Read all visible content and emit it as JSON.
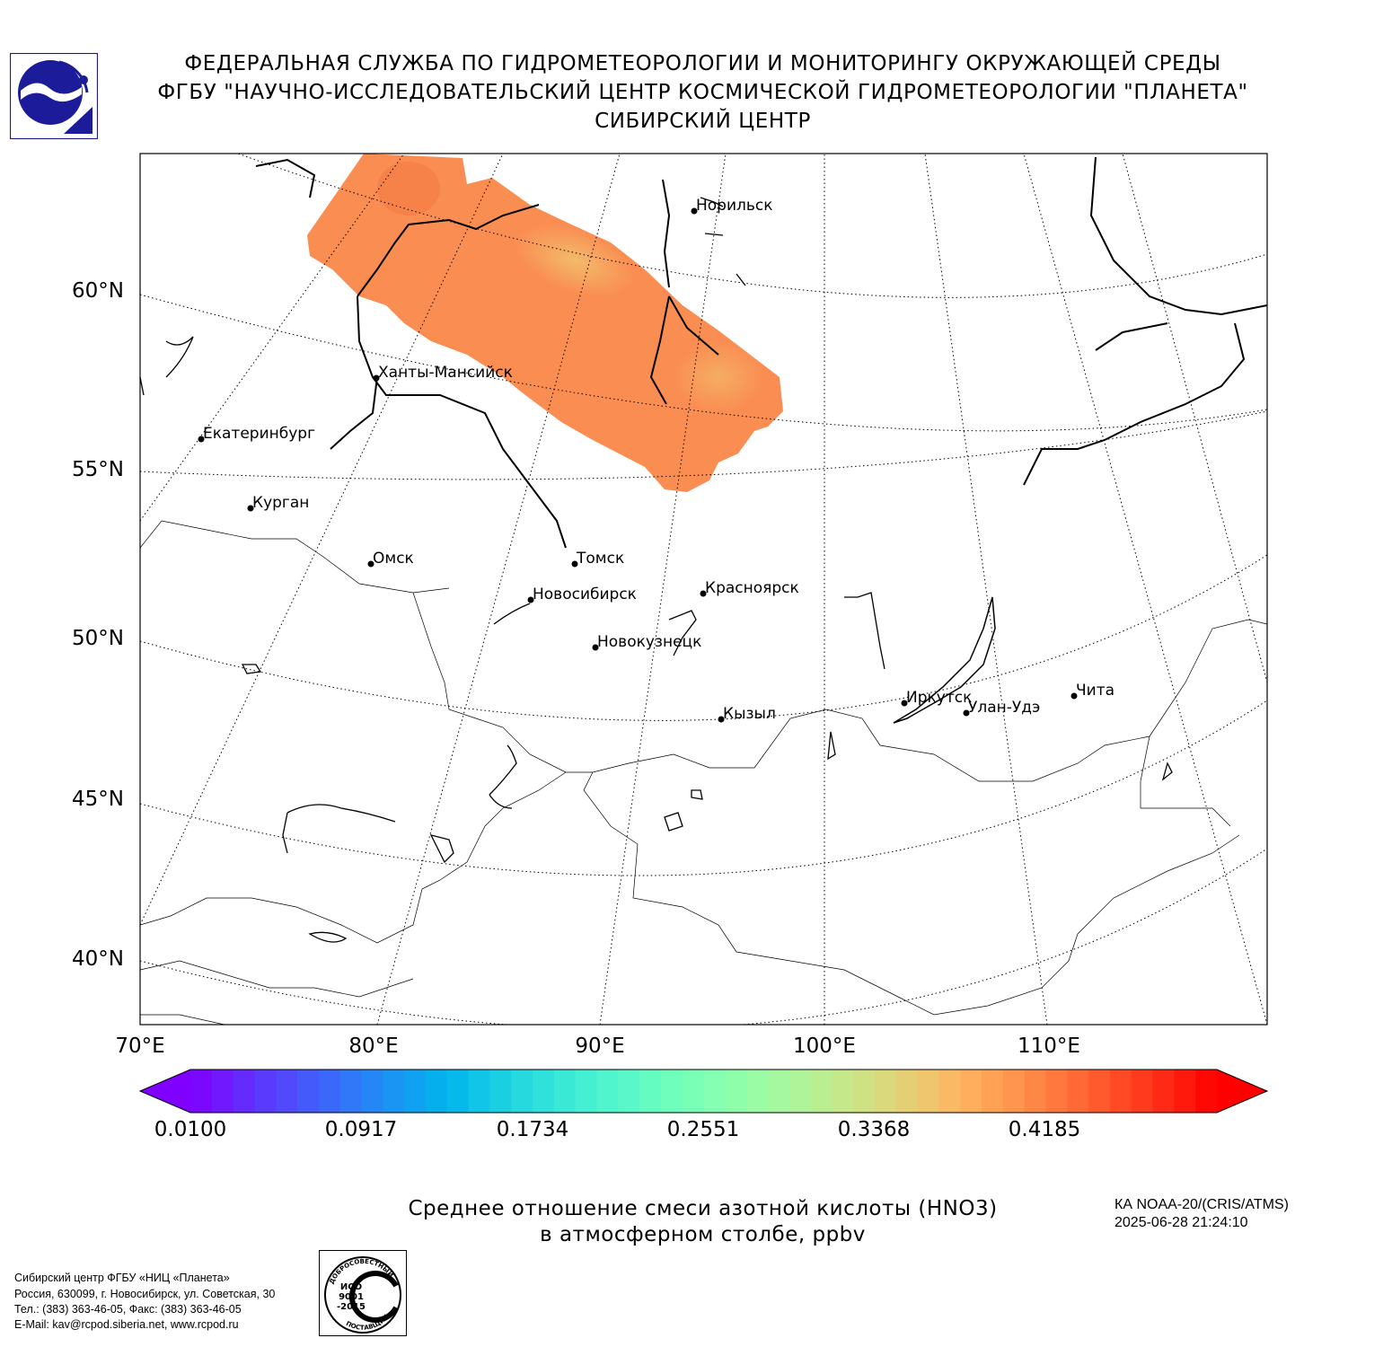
{
  "header": {
    "line1": "ФЕДЕРАЛЬНАЯ СЛУЖБА ПО ГИДРОМЕТЕОРОЛОГИИ И МОНИТОРИНГУ ОКРУЖАЮЩЕЙ СРЕДЫ",
    "line2": "ФГБУ \"НАУЧНО-ИССЛЕДОВАТЕЛЬСКИЙ ЦЕНТР КОСМИЧЕСКОЙ ГИДРОМЕТЕОРОЛОГИИ \"ПЛАНЕТА\"",
    "line3": "СИБИРСКИЙ ЦЕНТР"
  },
  "map": {
    "lat_labels": [
      "60°N",
      "55°N",
      "50°N",
      "45°N",
      "40°N"
    ],
    "lon_labels": [
      "70°E",
      "80°E",
      "90°E",
      "100°E",
      "110°E"
    ],
    "cities": [
      {
        "name": "Норильск"
      },
      {
        "name": "Ханты-Мансийск"
      },
      {
        "name": "Екатеринбург"
      },
      {
        "name": "Курган"
      },
      {
        "name": "Омск"
      },
      {
        "name": "Томск"
      },
      {
        "name": "Новосибирск"
      },
      {
        "name": "Красноярск"
      },
      {
        "name": "Новокузнецк"
      },
      {
        "name": "Кызыл"
      },
      {
        "name": "Иркутск"
      },
      {
        "name": "Улан-Удэ"
      },
      {
        "name": "Чита"
      }
    ],
    "swath_color": "#fa8d52",
    "swath_highlight_color": "#f2c06e"
  },
  "colorbar": {
    "ticks": [
      "0.0100",
      "0.0917",
      "0.1734",
      "0.2551",
      "0.3368",
      "0.4185"
    ],
    "colormap": "rainbow",
    "extend": "both"
  },
  "caption": {
    "line1": "Среднее отношение смеси азотной кислоты (HNO3)",
    "line2": "в атмосферном столбе, ppbv"
  },
  "satellite": {
    "instrument": "КА NOAA-20/(CRIS/ATMS)",
    "datetime": "2025-06-28 21:24:10"
  },
  "footer": {
    "line1": "Сибирский центр ФГБУ «НИЦ «Планета»",
    "line2": "Россия, 630099, г. Новосибирск, ул. Советская, 30",
    "line3": "Тел.: (383) 363-46-05, Факс: (383) 363-46-05",
    "line4": "E-Mail: kav@rcpod.siberia.net, www.rcpod.ru"
  },
  "iso_badge": {
    "top_text": "ДОБРОСОВЕСТНЫЙ",
    "line1": "ИСО",
    "line2": "9001",
    "line3": "-2015",
    "bottom_text": "ПОСТАВЩИК"
  }
}
